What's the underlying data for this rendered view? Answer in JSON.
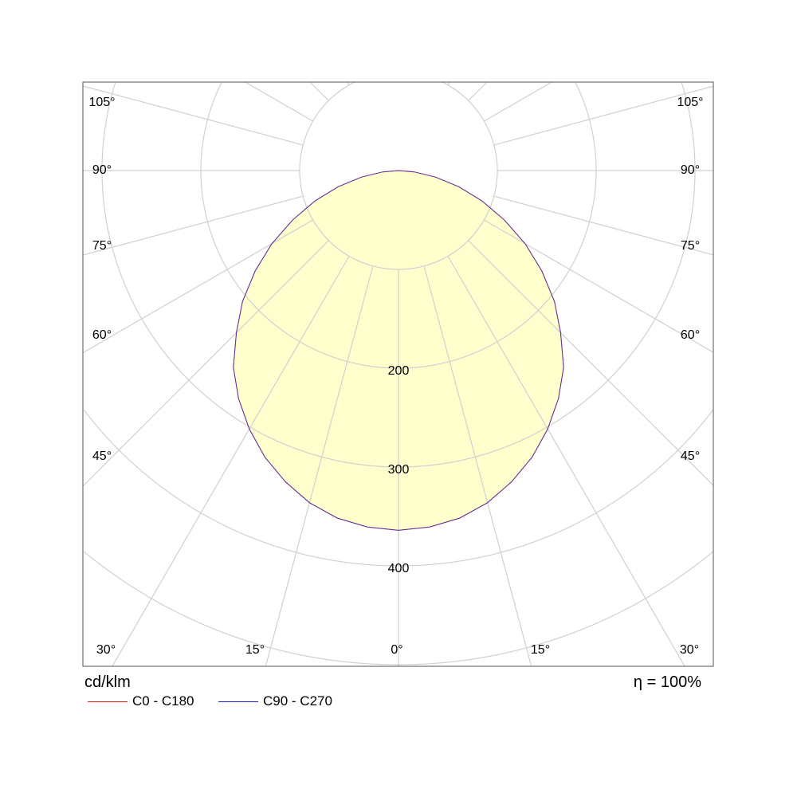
{
  "chart_data": {
    "type": "polar",
    "unit_label": "cd/klm",
    "efficiency_label": "η = 100%",
    "radial_ticks": [
      200,
      300,
      400
    ],
    "radial_grid": [
      100,
      200,
      300,
      400,
      500,
      600,
      700
    ],
    "angle_grid_step_deg": 15,
    "angle_labels_bottom": [
      "30°",
      "15°",
      "0°",
      "15°",
      "30°"
    ],
    "angle_labels_side": [
      "45°",
      "60°",
      "75°",
      "90°",
      "105°"
    ],
    "angles_deg": [
      0,
      5,
      10,
      15,
      20,
      25,
      30,
      35,
      40,
      45,
      50,
      55,
      60,
      65,
      70,
      75,
      80,
      85,
      90
    ],
    "series": [
      {
        "name": "C0 - C180",
        "color": "#e02020",
        "values": [
          364,
          362,
          357,
          348,
          335,
          320,
          302,
          282,
          260,
          232,
          206,
          177,
          148,
          118,
          90,
          63,
          38,
          16,
          0
        ]
      },
      {
        "name": "C90 - C270",
        "color": "#2020c0",
        "values": [
          364,
          362,
          357,
          348,
          335,
          320,
          302,
          282,
          260,
          232,
          206,
          177,
          148,
          118,
          90,
          63,
          38,
          16,
          0
        ]
      }
    ],
    "fill_color": "#ffffc4",
    "grid_color": "#d0d0d0"
  }
}
